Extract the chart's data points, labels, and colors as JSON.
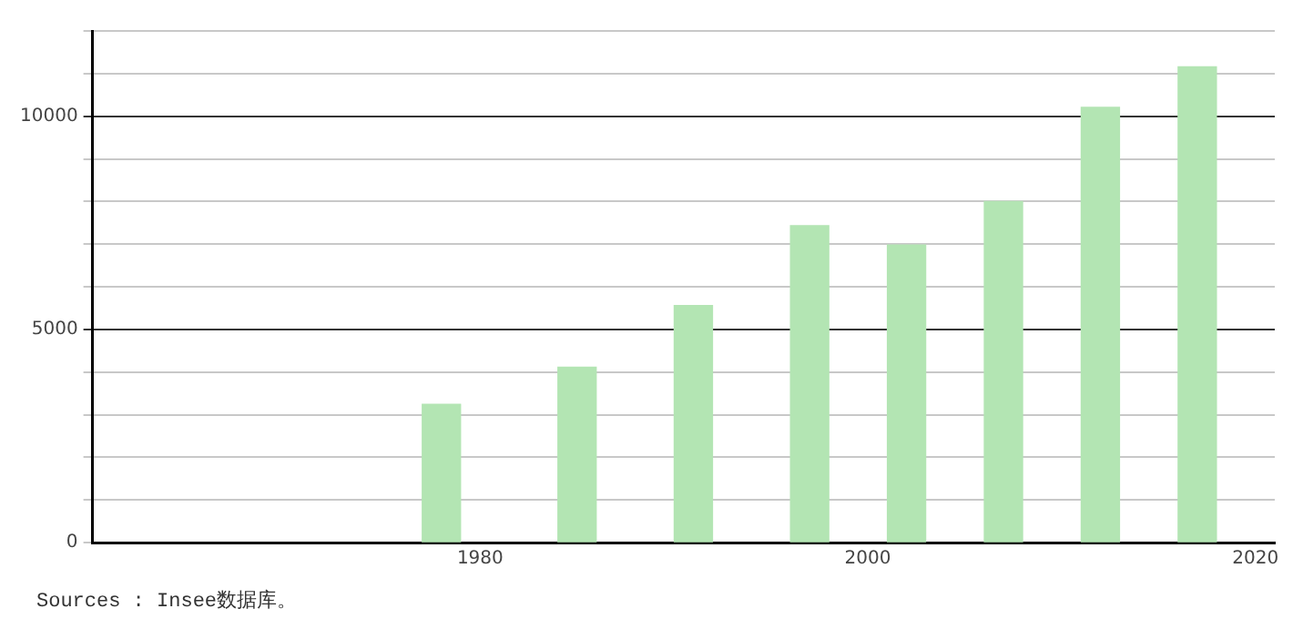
{
  "chart_data": {
    "type": "bar",
    "x": [
      1978,
      1985,
      1991,
      1997,
      2002,
      2007,
      2012,
      2017
    ],
    "values": [
      3240,
      4110,
      5560,
      7430,
      6980,
      8000,
      10210,
      11160
    ],
    "color": "#b3e5b3",
    "xlim": [
      1960,
      2021
    ],
    "xticks": [
      1980,
      2000,
      2020
    ],
    "ylim": [
      0,
      12000
    ],
    "yticks": [
      0,
      {
        "value": 1000,
        "label": null
      },
      {
        "value": 2000,
        "label": null
      },
      {
        "value": 3000,
        "label": null
      },
      {
        "value": 4000,
        "label": null
      },
      5000,
      {
        "value": 6000,
        "label": null
      },
      {
        "value": 7000,
        "label": null
      },
      {
        "value": 8000,
        "label": null
      },
      {
        "value": 9000,
        "label": null
      },
      10000,
      {
        "value": 11000,
        "label": null
      },
      {
        "value": 12000,
        "label": null
      }
    ],
    "grid": "y",
    "legend": false,
    "annotations": [
      "Sources : Insee数据库。"
    ]
  }
}
